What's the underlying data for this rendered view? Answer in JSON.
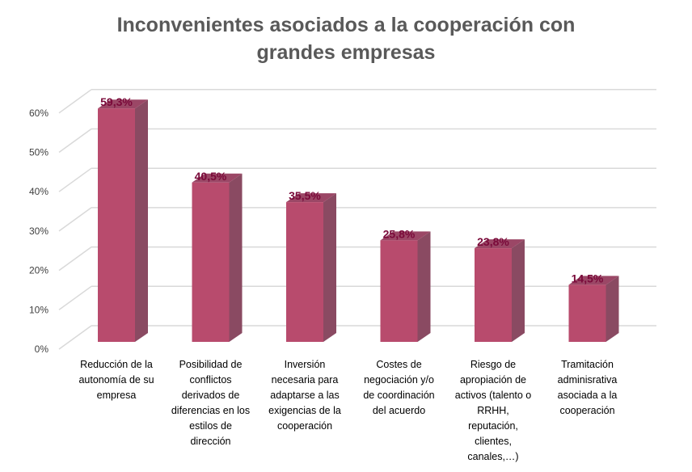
{
  "chart_data": {
    "type": "bar",
    "style": "3d-column",
    "title": "Inconvenientes asociados a la cooperación con grandes empresas",
    "title_lines": [
      "Inconvenientes asociados a la cooperación con",
      "grandes empresas"
    ],
    "categories": [
      "Reducción de la autonomía de su empresa",
      "Posibilidad de conflictos derivados de diferencias en los estilos de dirección",
      "Inversión necesaria para adaptarse a las exigencias de la cooperación",
      "Costes de negociación y/o de coordinación del acuerdo",
      "Riesgo de apropiación de activos (talento o RRHH, reputación, clientes, canales,…)",
      "Tramitación adminisrativa asociada a la cooperación"
    ],
    "category_lines": [
      [
        "Reducción de la",
        "autonomía de su",
        "empresa"
      ],
      [
        "Posibilidad de",
        "conflictos",
        "derivados de",
        "diferencias en los",
        "estilos de",
        "dirección"
      ],
      [
        "Inversión",
        "necesaria para",
        "adaptarse a las",
        "exigencias de la",
        "cooperación"
      ],
      [
        "Costes de",
        "negociación y/o",
        "de coordinación",
        "del acuerdo"
      ],
      [
        "Riesgo de",
        "apropiación de",
        "activos (talento o",
        "RRHH,",
        "reputación,",
        "clientes,",
        "canales,…)"
      ],
      [
        "Tramitación",
        "adminisrativa",
        "asociada a la",
        "cooperación"
      ]
    ],
    "values": [
      59.3,
      40.5,
      35.5,
      25.8,
      23.8,
      14.5
    ],
    "data_labels": [
      "59,3%",
      "40,5%",
      "35,5%",
      "25,8%",
      "23,8%",
      "14,5%"
    ],
    "yticks": [
      "0%",
      "10%",
      "20%",
      "30%",
      "40%",
      "50%",
      "60%"
    ],
    "ylim": [
      0,
      60
    ],
    "grid": true,
    "legend": "none",
    "colors": {
      "bar_front": "#b84b6d",
      "bar_side": "#8a4a62",
      "bar_top": "#9b4766",
      "data_label": "#7a0a3a",
      "grid": "#d9d9d9"
    }
  }
}
